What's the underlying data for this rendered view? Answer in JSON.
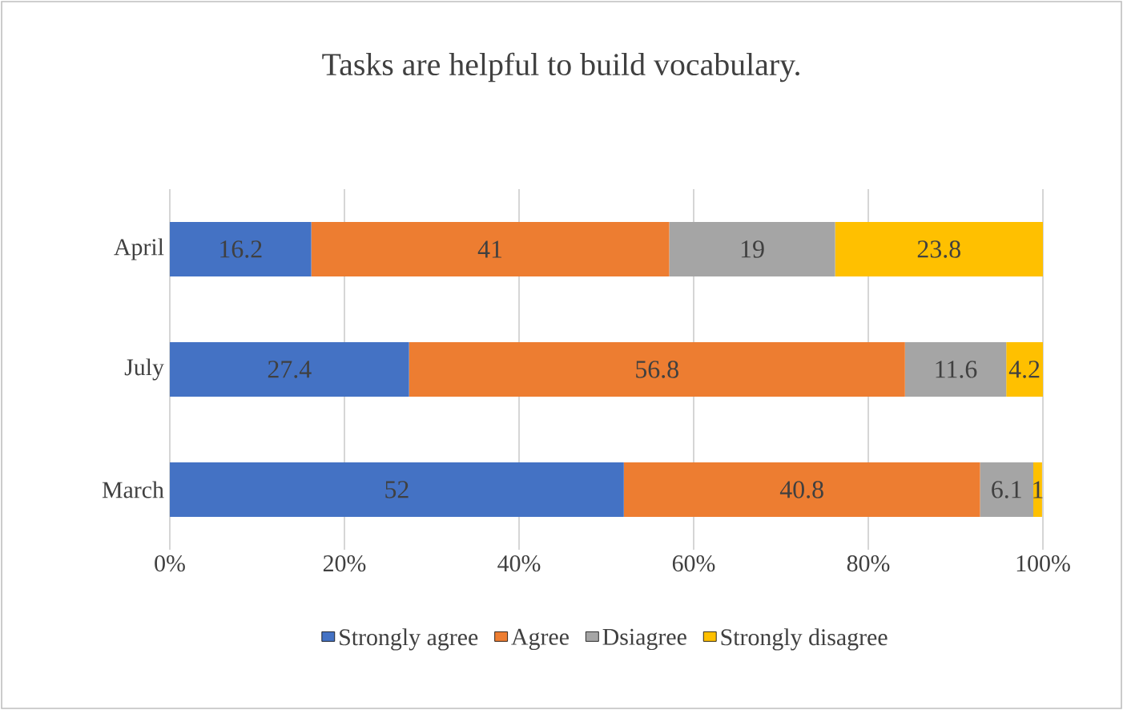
{
  "chart_data": {
    "type": "bar",
    "orientation": "horizontal",
    "stacked": true,
    "title": "Tasks are helpful to build vocabulary.",
    "categories": [
      "April",
      "July",
      "March"
    ],
    "series": [
      {
        "name": "Strongly agree",
        "color": "#4472c4",
        "values": [
          16.2,
          27.4,
          52
        ]
      },
      {
        "name": "Agree",
        "color": "#ed7d31",
        "values": [
          41,
          56.8,
          40.8
        ]
      },
      {
        "name": "Dsiagree",
        "color": "#a5a5a5",
        "values": [
          19,
          11.6,
          6.1
        ]
      },
      {
        "name": "Strongly disagree",
        "color": "#ffc000",
        "values": [
          23.8,
          4.2,
          1
        ]
      }
    ],
    "xlim": [
      0,
      100
    ],
    "xticks": [
      {
        "value": 0,
        "label": "0%"
      },
      {
        "value": 20,
        "label": "20%"
      },
      {
        "value": 40,
        "label": "40%"
      },
      {
        "value": 60,
        "label": "60%"
      },
      {
        "value": 80,
        "label": "80%"
      },
      {
        "value": 100,
        "label": "100%"
      }
    ],
    "grid": "x",
    "legend": "bottom",
    "data_labels": true
  }
}
